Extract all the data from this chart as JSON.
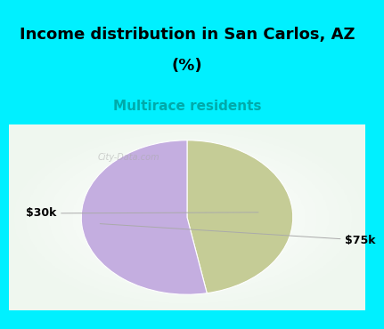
{
  "title_line1": "Income distribution in San Carlos, AZ",
  "title_line2": "(%)",
  "subtitle": "Multirace residents",
  "slices": [
    {
      "label": "$30k",
      "value": 47,
      "color": "#c5cc96"
    },
    {
      "label": "$75k",
      "value": 53,
      "color": "#c4aee0"
    }
  ],
  "start_angle": 90,
  "bg_cyan": "#00f0ff",
  "bg_pie_area": "#f0faf2",
  "title_fontsize": 13,
  "subtitle_fontsize": 11,
  "subtitle_color": "#00aaaa",
  "label_fontsize": 9,
  "watermark": "City-Data.com",
  "title_color": "#000000"
}
